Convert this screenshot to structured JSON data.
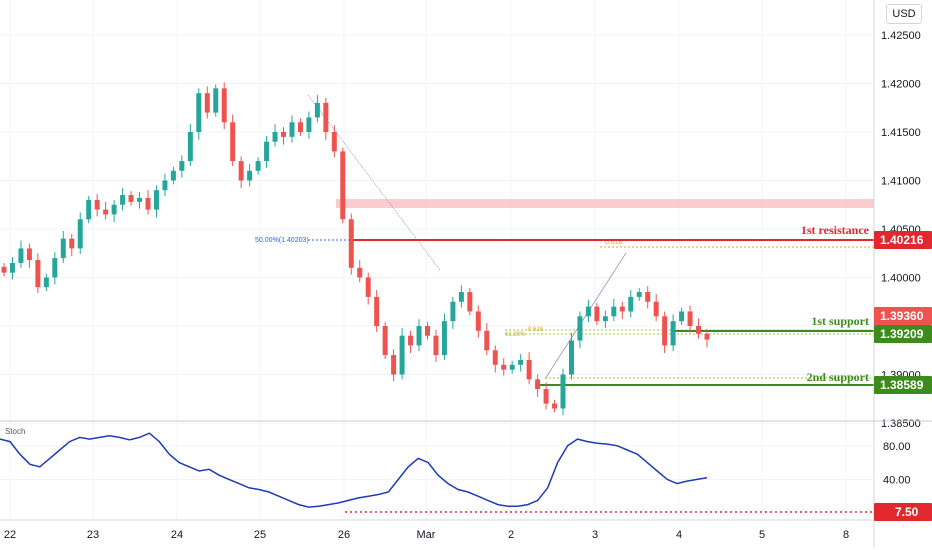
{
  "currency_label": "USD",
  "stoch_label": "Stoch",
  "price_axis": [
    "1.42500",
    "1.42000",
    "1.41500",
    "1.41000",
    "1.40500",
    "1.40000",
    "1.39500",
    "1.39000",
    "1.38500"
  ],
  "stoch_axis": [
    "80.00",
    "40.00"
  ],
  "time_axis": [
    "22",
    "23",
    "24",
    "25",
    "26",
    "Mar",
    "2",
    "3",
    "4",
    "5",
    "8"
  ],
  "levels": {
    "resistance_label": "1st resistance",
    "resistance_value": "1.40216",
    "support1_label": "1st support",
    "support1_value": "1.39209",
    "support2_label": "2nd support",
    "support2_value": "1.38589",
    "current_price": "1.39360",
    "stoch_level": "7.50"
  },
  "fib_labels": {
    "fifty": "50.00%(1.40203)",
    "f618_top": "0.618",
    "f618_a": "0.618",
    "f618_b": "61.80%"
  },
  "colors": {
    "up": "#26a69a",
    "down": "#ef5350",
    "resistance": "#e0282e",
    "support": "#3d8b1c",
    "support_light": "#9acd32",
    "stoch_line": "#1f3cb4",
    "zone": "#f8c8c8"
  },
  "chart_data": {
    "type": "candlestick",
    "symbol_currency": "USD",
    "y_range": [
      1.3835,
      1.4275
    ],
    "x_ticks": [
      "22",
      "23",
      "24",
      "25",
      "26",
      "Mar",
      "2",
      "3",
      "4",
      "5",
      "8"
    ],
    "close_path": [
      1.4005,
      1.4015,
      1.403,
      1.4018,
      1.399,
      1.4,
      1.402,
      1.404,
      1.403,
      1.406,
      1.408,
      1.407,
      1.4065,
      1.4075,
      1.4085,
      1.4078,
      1.4082,
      1.407,
      1.409,
      1.41,
      1.411,
      1.412,
      1.415,
      1.419,
      1.417,
      1.4195,
      1.416,
      1.412,
      1.41,
      1.411,
      1.412,
      1.414,
      1.415,
      1.4145,
      1.416,
      1.415,
      1.4165,
      1.418,
      1.415,
      1.413,
      1.406,
      1.401,
      1.4,
      1.398,
      1.395,
      1.392,
      1.39,
      1.394,
      1.393,
      1.395,
      1.394,
      1.392,
      1.3955,
      1.3975,
      1.3985,
      1.3965,
      1.3945,
      1.3925,
      1.391,
      1.3905,
      1.391,
      1.3915,
      1.3895,
      1.3885,
      1.387,
      1.3865,
      1.39,
      1.3935,
      1.396,
      1.397,
      1.3955,
      1.396,
      1.397,
      1.3965,
      1.398,
      1.3985,
      1.3975,
      1.396,
      1.393,
      1.3955,
      1.3965,
      1.395,
      1.3942,
      1.3936
    ],
    "resistance_1": 1.40216,
    "support_1": 1.39209,
    "support_2": 1.38589,
    "current_price": 1.3936,
    "fib_50": 1.40203,
    "stoch": {
      "y_range": [
        0,
        100
      ],
      "values": [
        88,
        85,
        70,
        58,
        55,
        65,
        75,
        85,
        90,
        88,
        90,
        92,
        90,
        87,
        90,
        95,
        85,
        70,
        60,
        55,
        50,
        52,
        45,
        40,
        35,
        30,
        28,
        25,
        20,
        15,
        10,
        7,
        8,
        10,
        12,
        15,
        18,
        20,
        22,
        25,
        40,
        55,
        65,
        60,
        45,
        35,
        28,
        25,
        20,
        15,
        10,
        8,
        8,
        10,
        15,
        30,
        60,
        80,
        88,
        85,
        83,
        82,
        80,
        75,
        70,
        60,
        50,
        40,
        35,
        38,
        40,
        42
      ],
      "level": 7.5,
      "ticks": [
        80,
        40
      ]
    }
  }
}
